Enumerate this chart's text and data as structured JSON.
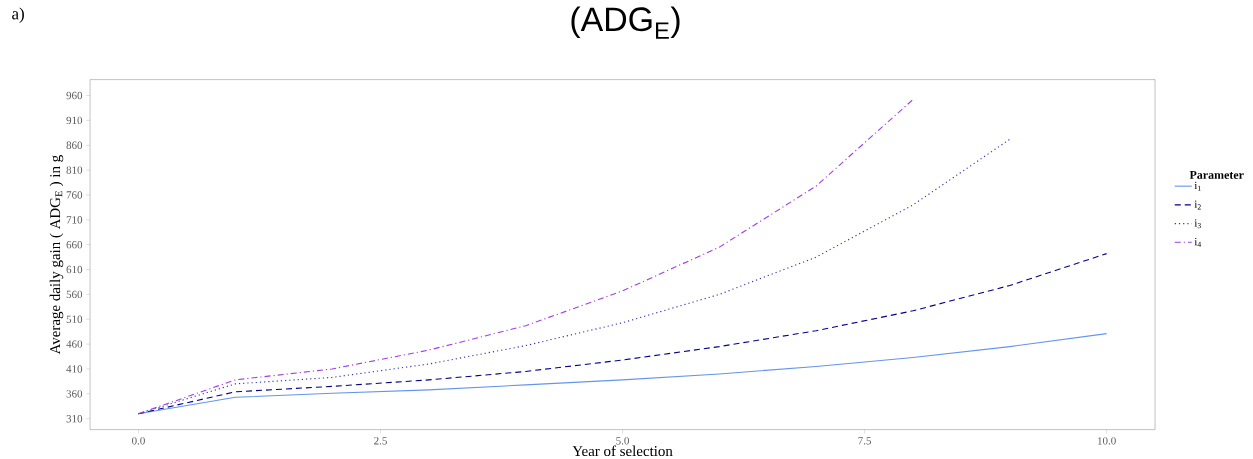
{
  "chart_data": {
    "type": "line",
    "title": "(ADG$_{E}$)",
    "xlabel": "Year of selection",
    "ylabel": "Average daily gain ( ADG$_{E}$ ) in g",
    "legend_title": "Parameter",
    "legend": "right",
    "annotations": [
      "a)"
    ],
    "x": [
      0,
      1,
      2,
      3,
      4,
      5,
      6,
      7,
      8,
      9,
      10
    ],
    "series": [
      {
        "name": "i$_{1}$",
        "color": "#6495ed",
        "line_style": "solid",
        "values": [
          320,
          353,
          361,
          368,
          378,
          388,
          400,
          415,
          433,
          455,
          481
        ]
      },
      {
        "name": "i$_{2}$",
        "color": "#00008b",
        "line_style": "dashed",
        "values": [
          320,
          364,
          375,
          388,
          405,
          428,
          455,
          487,
          527,
          578,
          642
        ]
      },
      {
        "name": "i$_{3}$",
        "color": "#3030b0",
        "line_style": "dotted",
        "values": [
          320,
          380,
          393,
          420,
          457,
          503,
          560,
          635,
          740,
          872,
          null
        ]
      },
      {
        "name": "i$_{4}$",
        "color": "#a040e0",
        "line_style": "dashdot",
        "values": [
          320,
          388,
          410,
          448,
          497,
          567,
          655,
          778,
          952,
          null,
          null
        ]
      }
    ],
    "xlim": [
      -0.5,
      10.5
    ],
    "ylim": [
      288,
      992
    ],
    "xticks": [
      {
        "value": 0,
        "label": "0.0"
      },
      {
        "value": 2.5,
        "label": "2.5"
      },
      {
        "value": 5,
        "label": "5.0"
      },
      {
        "value": 7.5,
        "label": "7.5"
      },
      {
        "value": 10,
        "label": "10.0"
      }
    ],
    "yticks": [
      310,
      360,
      410,
      460,
      510,
      560,
      610,
      660,
      710,
      760,
      810,
      860,
      910,
      960
    ]
  }
}
